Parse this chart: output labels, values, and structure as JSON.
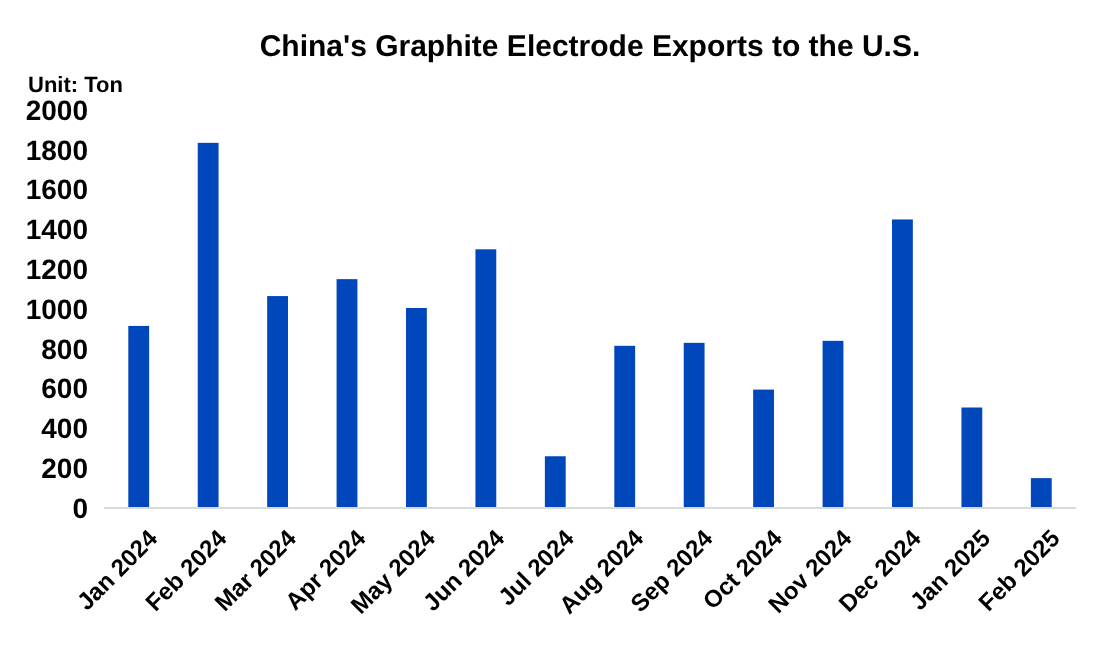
{
  "chart_data": {
    "type": "bar",
    "title": "China's Graphite Electrode Exports to the U.S.",
    "annotations": [
      "Unit: Ton"
    ],
    "categories": [
      "Jan 2024",
      "Feb 2024",
      "Mar 2024",
      "Apr 2024",
      "May 2024",
      "Jun 2024",
      "Jul 2024",
      "Aug 2024",
      "Sep 2024",
      "Oct 2024",
      "Nov 2024",
      "Dec 2024",
      "Jan 2025",
      "Feb 2025"
    ],
    "values": [
      915,
      1835,
      1065,
      1150,
      1005,
      1300,
      260,
      815,
      830,
      595,
      840,
      1450,
      505,
      150
    ],
    "color": "#0047bb",
    "ylim": [
      0,
      2000
    ],
    "yticks": [
      0,
      200,
      400,
      600,
      800,
      1000,
      1200,
      1400,
      1600,
      1800,
      2000
    ],
    "grid": false
  }
}
